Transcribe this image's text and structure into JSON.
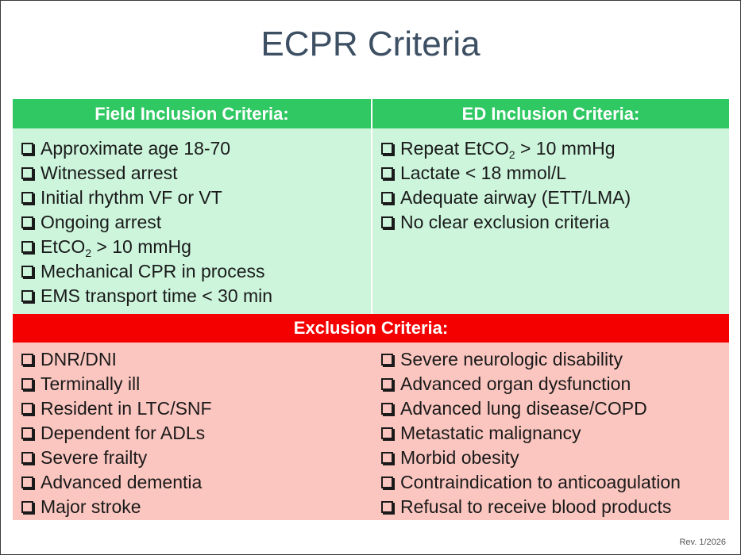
{
  "title": "ECPR Criteria",
  "field_inclusion": {
    "header": "Field Inclusion Criteria:",
    "items": [
      "Approximate age 18-70",
      "Witnessed arrest",
      "Initial rhythm VF or VT",
      "Ongoing arrest",
      {
        "pre": "EtCO",
        "sub": "2",
        "post": " > 10 mmHg"
      },
      "Mechanical CPR in process",
      "EMS transport time < 30 min"
    ]
  },
  "ed_inclusion": {
    "header": "ED Inclusion Criteria:",
    "items": [
      {
        "pre": "Repeat EtCO",
        "sub": "2",
        "post": " > 10 mmHg"
      },
      "Lactate < 18 mmol/L",
      "Adequate airway (ETT/LMA)",
      "No clear exclusion criteria"
    ]
  },
  "exclusion": {
    "header": "Exclusion Criteria:",
    "left_items": [
      "DNR/DNI",
      "Terminally ill",
      "Resident in LTC/SNF",
      "Dependent for ADLs",
      "Severe frailty",
      "Advanced dementia",
      "Major stroke"
    ],
    "right_items": [
      "Severe neurologic disability",
      "Advanced organ dysfunction",
      "Advanced lung disease/COPD",
      "Metastatic malignancy",
      "Morbid obesity",
      "Contraindication to anticoagulation",
      "Refusal to receive blood products"
    ]
  },
  "revision": "Rev. 1/2026",
  "colors": {
    "inclusion_header": "#2fc862",
    "inclusion_body": "#ccf5dc",
    "exclusion_header": "#f50000",
    "exclusion_body": "#fcc6c0",
    "title_text": "#3d4f63"
  },
  "icons": {
    "checkbox": "checkbox-icon"
  }
}
